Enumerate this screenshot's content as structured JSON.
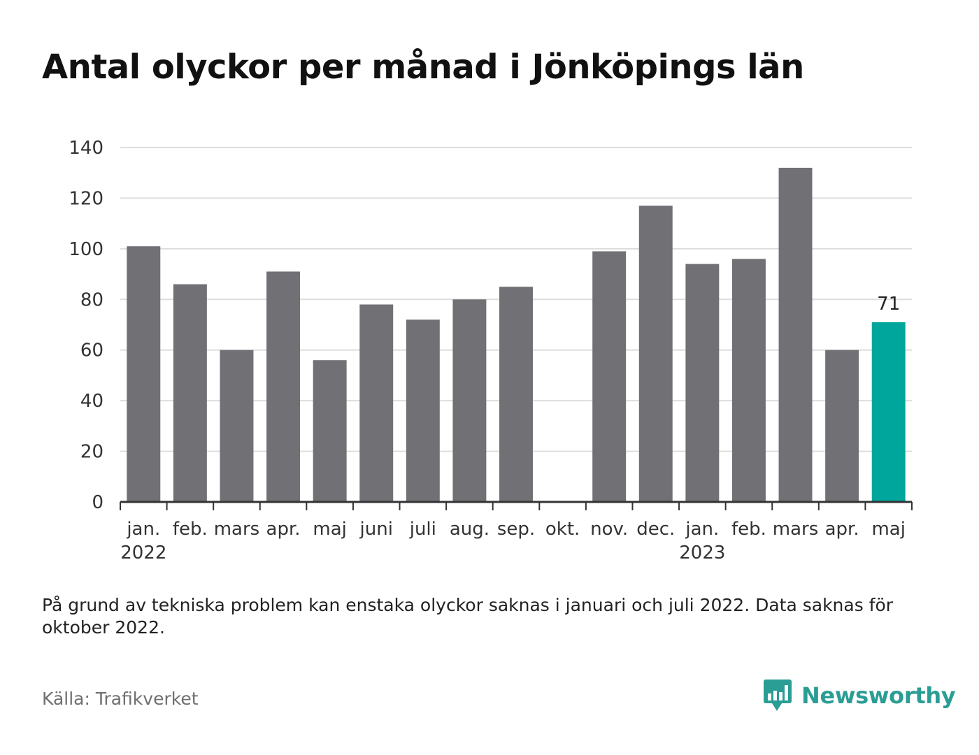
{
  "title": "Antal olyckor per månad i Jönköpings län",
  "note": "På grund av tekniska problem kan enstaka olyckor saknas i januari och juli 2022. Data saknas för oktober 2022.",
  "source": "Källa: Trafikverket",
  "brand": "Newsworthy",
  "colors": {
    "bar": "#707075",
    "highlight": "#00a59b",
    "grid": "#dddddd",
    "axis": "#333333",
    "brand": "#2a9d95"
  },
  "chart_data": {
    "type": "bar",
    "categories": [
      "jan.",
      "feb.",
      "mars",
      "apr.",
      "maj",
      "juni",
      "juli",
      "aug.",
      "sep.",
      "okt.",
      "nov.",
      "dec.",
      "jan.",
      "feb.",
      "mars",
      "apr.",
      "maj"
    ],
    "year_labels": [
      {
        "index": 0,
        "label": "2022"
      },
      {
        "index": 12,
        "label": "2023"
      }
    ],
    "values": [
      101,
      86,
      60,
      91,
      56,
      78,
      72,
      80,
      85,
      null,
      99,
      117,
      94,
      96,
      132,
      60,
      71
    ],
    "highlight_index": 16,
    "data_labels": [
      {
        "index": 16,
        "label": "71"
      }
    ],
    "ylim": [
      0,
      140
    ],
    "yticks": [
      0,
      20,
      40,
      60,
      80,
      100,
      120,
      140
    ],
    "grid": true
  }
}
